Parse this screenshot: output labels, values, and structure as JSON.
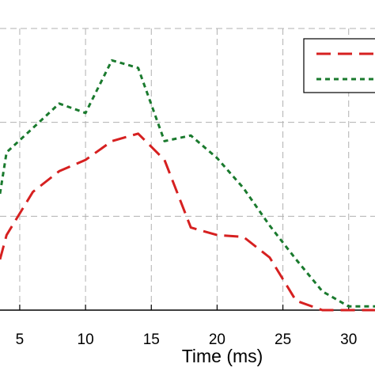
{
  "chart_data": {
    "type": "line",
    "xlabel": "Time (ms)",
    "xticks": [
      5,
      10,
      15,
      20,
      25,
      30
    ],
    "xlim": [
      3.5,
      32
    ],
    "ylim": [
      0,
      1.5
    ],
    "y_gridlines": [
      0.5,
      1.0,
      1.5
    ],
    "grid": true,
    "legend_placement": "top-right",
    "series": [
      {
        "color": "#d62020",
        "dash": "long-dash",
        "x": [
          3.5,
          4,
          6,
          8,
          10,
          12,
          14,
          16,
          18,
          20,
          22,
          24,
          26,
          28,
          30,
          32
        ],
        "y": [
          0.27,
          0.4,
          0.63,
          0.74,
          0.8,
          0.9,
          0.94,
          0.8,
          0.44,
          0.4,
          0.39,
          0.28,
          0.05,
          0.0,
          0.0,
          0.0
        ]
      },
      {
        "color": "#1a7a2e",
        "dash": "short-dash",
        "x": [
          3.5,
          4,
          6,
          8,
          10,
          12,
          14,
          16,
          18,
          20,
          22,
          24,
          26,
          28,
          30,
          32
        ],
        "y": [
          0.62,
          0.84,
          0.97,
          1.1,
          1.05,
          1.33,
          1.29,
          0.9,
          0.93,
          0.81,
          0.65,
          0.45,
          0.27,
          0.1,
          0.02,
          0.02
        ]
      }
    ]
  }
}
